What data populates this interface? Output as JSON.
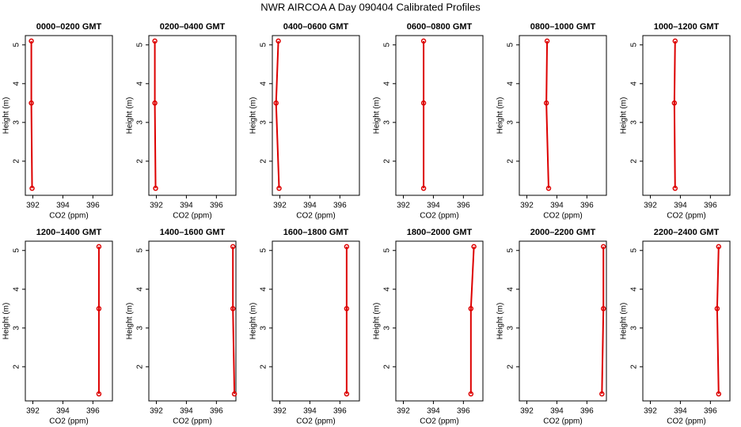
{
  "title": "NWR AIRCOA A  Day 090404  Calibrated Profiles",
  "chart_data": [
    {
      "type": "line",
      "title": "0000–0200 GMT",
      "xlabel": "CO2 (ppm)",
      "ylabel": "Height (m)",
      "x": [
        391.9,
        391.9,
        391.95
      ],
      "y": [
        5.1,
        3.5,
        1.3
      ],
      "color": "#dd0000",
      "xlim": [
        391.5,
        397.3
      ],
      "ylim": [
        1.12,
        5.24
      ],
      "xticks": [
        392,
        394,
        396
      ],
      "yticks": [
        2,
        3,
        4,
        5
      ]
    },
    {
      "type": "line",
      "title": "0200–0400 GMT",
      "xlabel": "CO2 (ppm)",
      "ylabel": "Height (m)",
      "x": [
        391.9,
        391.9,
        391.95
      ],
      "y": [
        5.1,
        3.5,
        1.3
      ],
      "color": "#dd0000",
      "xlim": [
        391.5,
        397.3
      ],
      "ylim": [
        1.12,
        5.24
      ],
      "xticks": [
        392,
        394,
        396
      ],
      "yticks": [
        2,
        3,
        4,
        5
      ]
    },
    {
      "type": "line",
      "title": "0400–0600 GMT",
      "xlabel": "CO2 (ppm)",
      "ylabel": "Height (m)",
      "x": [
        391.9,
        391.75,
        391.95
      ],
      "y": [
        5.1,
        3.5,
        1.3
      ],
      "color": "#dd0000",
      "xlim": [
        391.5,
        397.3
      ],
      "ylim": [
        1.12,
        5.24
      ],
      "xticks": [
        392,
        394,
        396
      ],
      "yticks": [
        2,
        3,
        4,
        5
      ]
    },
    {
      "type": "line",
      "title": "0600–0800 GMT",
      "xlabel": "CO2 (ppm)",
      "ylabel": "Height (m)",
      "x": [
        393.35,
        393.35,
        393.35
      ],
      "y": [
        5.1,
        3.5,
        1.3
      ],
      "color": "#dd0000",
      "xlim": [
        391.5,
        397.3
      ],
      "ylim": [
        1.12,
        5.24
      ],
      "xticks": [
        392,
        394,
        396
      ],
      "yticks": [
        2,
        3,
        4,
        5
      ]
    },
    {
      "type": "line",
      "title": "0800–1000 GMT",
      "xlabel": "CO2 (ppm)",
      "ylabel": "Height (m)",
      "x": [
        393.35,
        393.3,
        393.45
      ],
      "y": [
        5.1,
        3.5,
        1.3
      ],
      "color": "#dd0000",
      "xlim": [
        391.5,
        397.3
      ],
      "ylim": [
        1.12,
        5.24
      ],
      "xticks": [
        392,
        394,
        396
      ],
      "yticks": [
        2,
        3,
        4,
        5
      ]
    },
    {
      "type": "line",
      "title": "1000–1200 GMT",
      "xlabel": "CO2 (ppm)",
      "ylabel": "Height (m)",
      "x": [
        393.65,
        393.6,
        393.65
      ],
      "y": [
        5.1,
        3.5,
        1.3
      ],
      "color": "#dd0000",
      "xlim": [
        391.5,
        397.3
      ],
      "ylim": [
        1.12,
        5.24
      ],
      "xticks": [
        392,
        394,
        396
      ],
      "yticks": [
        2,
        3,
        4,
        5
      ]
    },
    {
      "type": "line",
      "title": "1200–1400 GMT",
      "xlabel": "CO2 (ppm)",
      "ylabel": "Height (m)",
      "x": [
        396.4,
        396.4,
        396.4
      ],
      "y": [
        5.1,
        3.5,
        1.3
      ],
      "color": "#dd0000",
      "xlim": [
        391.5,
        397.3
      ],
      "ylim": [
        1.12,
        5.24
      ],
      "xticks": [
        392,
        394,
        396
      ],
      "yticks": [
        2,
        3,
        4,
        5
      ]
    },
    {
      "type": "line",
      "title": "1400–1600 GMT",
      "xlabel": "CO2 (ppm)",
      "ylabel": "Height (m)",
      "x": [
        397.1,
        397.1,
        397.2
      ],
      "y": [
        5.1,
        3.5,
        1.3
      ],
      "color": "#dd0000",
      "xlim": [
        391.5,
        397.3
      ],
      "ylim": [
        1.12,
        5.24
      ],
      "xticks": [
        392,
        394,
        396
      ],
      "yticks": [
        2,
        3,
        4,
        5
      ]
    },
    {
      "type": "line",
      "title": "1600–1800 GMT",
      "xlabel": "CO2 (ppm)",
      "ylabel": "Height (m)",
      "x": [
        396.45,
        396.45,
        396.45
      ],
      "y": [
        5.1,
        3.5,
        1.3
      ],
      "color": "#dd0000",
      "xlim": [
        391.5,
        397.3
      ],
      "ylim": [
        1.12,
        5.24
      ],
      "xticks": [
        392,
        394,
        396
      ],
      "yticks": [
        2,
        3,
        4,
        5
      ]
    },
    {
      "type": "line",
      "title": "1800–2000 GMT",
      "xlabel": "CO2 (ppm)",
      "ylabel": "Height (m)",
      "x": [
        396.7,
        396.5,
        396.5
      ],
      "y": [
        5.1,
        3.5,
        1.3
      ],
      "color": "#dd0000",
      "xlim": [
        391.5,
        397.3
      ],
      "ylim": [
        1.12,
        5.24
      ],
      "xticks": [
        392,
        394,
        396
      ],
      "yticks": [
        2,
        3,
        4,
        5
      ]
    },
    {
      "type": "line",
      "title": "2000–2200 GMT",
      "xlabel": "CO2 (ppm)",
      "ylabel": "Height (m)",
      "x": [
        397.1,
        397.1,
        397.0
      ],
      "y": [
        5.1,
        3.5,
        1.3
      ],
      "color": "#dd0000",
      "xlim": [
        391.5,
        397.3
      ],
      "ylim": [
        1.12,
        5.24
      ],
      "xticks": [
        392,
        394,
        396
      ],
      "yticks": [
        2,
        3,
        4,
        5
      ]
    },
    {
      "type": "line",
      "title": "2200–2400 GMT",
      "xlabel": "CO2 (ppm)",
      "ylabel": "Height (m)",
      "x": [
        396.55,
        396.45,
        396.55
      ],
      "y": [
        5.1,
        3.5,
        1.3
      ],
      "color": "#dd0000",
      "xlim": [
        391.5,
        397.3
      ],
      "ylim": [
        1.12,
        5.24
      ],
      "xticks": [
        392,
        394,
        396
      ],
      "yticks": [
        2,
        3,
        4,
        5
      ]
    }
  ]
}
